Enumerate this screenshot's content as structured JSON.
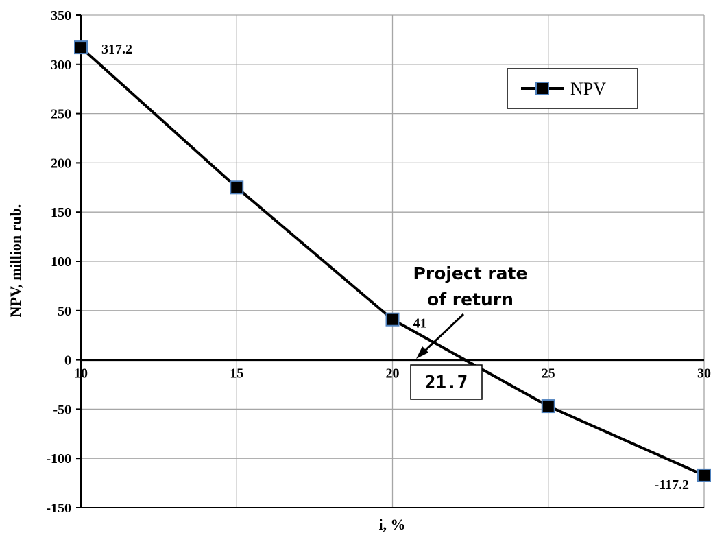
{
  "chart_data": {
    "type": "line",
    "title": "",
    "xlabel": "i, %",
    "ylabel": "NPV, million rub.",
    "x": [
      10,
      15,
      20,
      25,
      30
    ],
    "xlim": [
      10,
      30
    ],
    "ylim": [
      -150,
      350
    ],
    "x_ticks": [
      10,
      15,
      20,
      25,
      30
    ],
    "y_ticks": [
      350,
      300,
      250,
      200,
      150,
      100,
      50,
      0,
      -50,
      -100,
      -150
    ],
    "grid": true,
    "series": [
      {
        "name": "NPV",
        "values": [
          317.2,
          175,
          41,
          -47,
          -117.2
        ],
        "color": "#000000",
        "marker": "square",
        "marker_fill": "#000000",
        "marker_edge": "#4f81bd"
      }
    ],
    "data_labels": [
      {
        "x": 10,
        "y": 317.2,
        "text": "317.2"
      },
      {
        "x": 20,
        "y": 41,
        "text": "41"
      },
      {
        "x": 30,
        "y": -117.2,
        "text": "-117.2"
      }
    ],
    "legend": {
      "placement": "top-right",
      "entries": [
        "NPV"
      ]
    },
    "annotation": {
      "lines": [
        "Project rate",
        "of return"
      ],
      "value_text": "21.7",
      "points_to": {
        "x": 21.7,
        "y": 0
      }
    }
  }
}
